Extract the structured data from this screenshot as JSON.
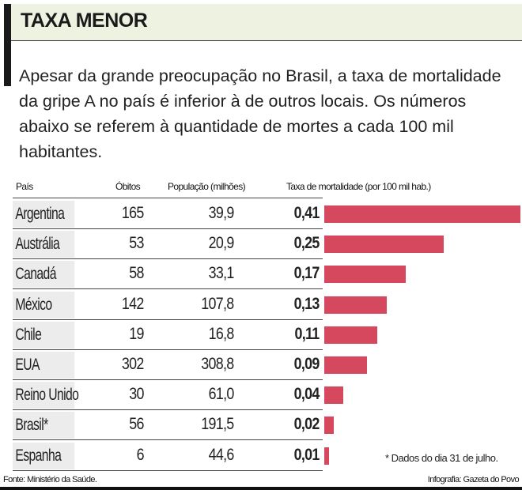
{
  "header": {
    "title": "TAXA MENOR",
    "intro": "Apesar da grande preocupação no Brasil, a taxa de mortalidade da gripe A no país é inferior à de outros locais. Os números abaixo se referem à quantidade de mortes a cada 100 mil habitantes."
  },
  "chart_data": {
    "type": "table",
    "columns": [
      "País",
      "Óbitos",
      "População (milhões)",
      "Taxa de mortalidade (por 100 mil hab.)"
    ],
    "rows": [
      {
        "country": "Argentina",
        "deaths": "165",
        "population": "39,9",
        "rate": "0,41",
        "rate_value": 0.41
      },
      {
        "country": "Austrália",
        "deaths": "53",
        "population": "20,9",
        "rate": "0,25",
        "rate_value": 0.25
      },
      {
        "country": "Canadá",
        "deaths": "58",
        "population": "33,1",
        "rate": "0,17",
        "rate_value": 0.17
      },
      {
        "country": "México",
        "deaths": "142",
        "population": "107,8",
        "rate": "0,13",
        "rate_value": 0.13
      },
      {
        "country": "Chile",
        "deaths": "19",
        "population": "16,8",
        "rate": "0,11",
        "rate_value": 0.11
      },
      {
        "country": "EUA",
        "deaths": "302",
        "population": "308,8",
        "rate": "0,09",
        "rate_value": 0.09
      },
      {
        "country": "Reino Unido",
        "deaths": "30",
        "population": "61,0",
        "rate": "0,04",
        "rate_value": 0.04
      },
      {
        "country": "Brasil*",
        "deaths": "56",
        "population": "191,5",
        "rate": "0,02",
        "rate_value": 0.02
      },
      {
        "country": "Espanha",
        "deaths": "6",
        "population": "44,6",
        "rate": "0,01",
        "rate_value": 0.01
      }
    ],
    "bar_color": "#d5485e",
    "note": "* Dados do dia 31 de julho."
  },
  "footer": {
    "source": "Fonte: Ministério da Saúde.",
    "credit": "Infografia: Gazeta do Povo"
  }
}
